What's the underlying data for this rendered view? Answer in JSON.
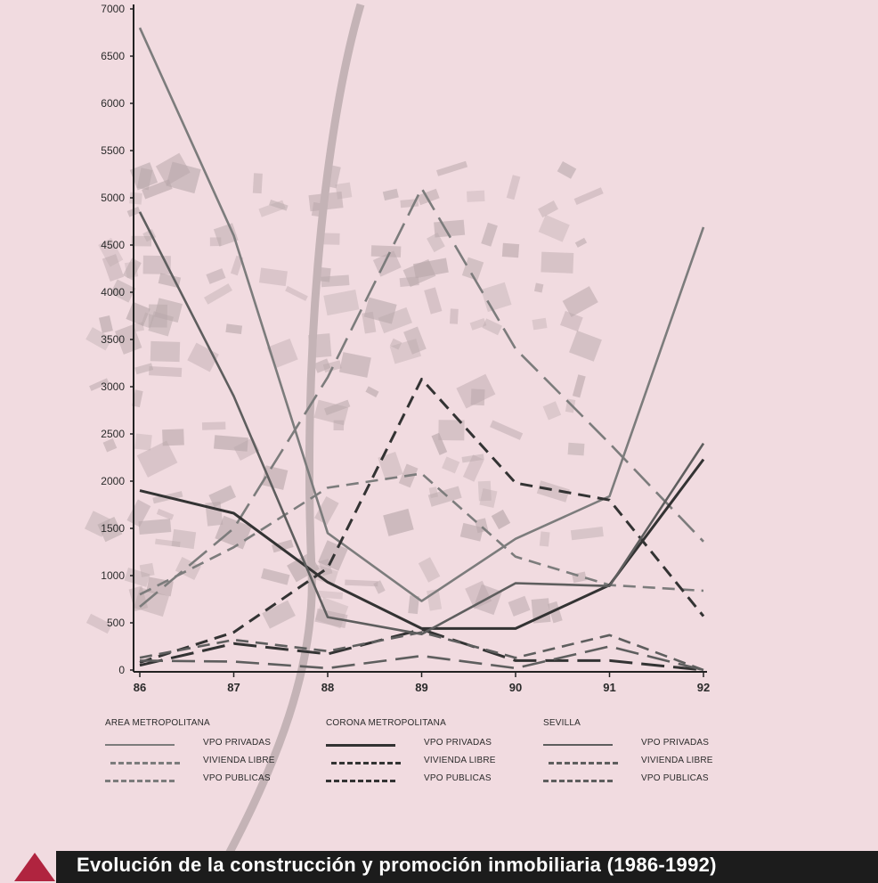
{
  "caption": "Evolución de la construcción y promoción inmobiliaria (1986-1992)",
  "legend": {
    "groups": [
      {
        "title": "AREA METROPOLITANA",
        "items": [
          "VPO PRIVADAS",
          "VIVIENDA LIBRE",
          "VPO PUBLICAS"
        ]
      },
      {
        "title": "CORONA METROPOLITANA",
        "items": [
          "VPO PRIVADAS",
          "VIVIENDA LIBRE",
          "VPO PUBLICAS"
        ]
      },
      {
        "title": "SEVILLA",
        "items": [
          "VPO PRIVADAS",
          "VIVIENDA LIBRE",
          "VPO PUBLICAS"
        ]
      }
    ]
  },
  "chart_data": {
    "type": "line",
    "x": [
      "86",
      "87",
      "88",
      "89",
      "90",
      "91",
      "92"
    ],
    "yticks": [
      "0",
      "500",
      "1000",
      "1500",
      "2000",
      "2500",
      "3000",
      "3500",
      "4000",
      "4500",
      "5000",
      "5500",
      "6000",
      "6500",
      "7000"
    ],
    "ylim": [
      0,
      7000
    ],
    "grid": false,
    "legend_position": "bottom",
    "colors": {
      "grey": "#7c7c7c",
      "dark": "#333333",
      "mid": "#5e5e5e",
      "text": "#2a2a2a",
      "axis": "#222222"
    },
    "series": [
      {
        "group": "AREA METROPOLITANA",
        "name": "VPO PRIVADAS",
        "style": "solid",
        "tone": "grey",
        "values": [
          6800,
          4600,
          1450,
          730,
          1390,
          1840,
          4690
        ]
      },
      {
        "group": "AREA METROPOLITANA",
        "name": "VIVIENDA LIBRE",
        "style": "dashed",
        "tone": "grey",
        "values": [
          800,
          1300,
          1930,
          2080,
          1200,
          900,
          840
        ]
      },
      {
        "group": "AREA METROPOLITANA",
        "name": "VPO PUBLICAS",
        "style": "longdash",
        "tone": "grey",
        "values": [
          670,
          1500,
          3100,
          5100,
          3400,
          2400,
          1360
        ]
      },
      {
        "group": "CORONA METROPOLITANA",
        "name": "VPO PRIVADAS",
        "style": "solid",
        "tone": "dark",
        "values": [
          1900,
          1660,
          930,
          440,
          440,
          900,
          2230
        ]
      },
      {
        "group": "CORONA METROPOLITANA",
        "name": "VIVIENDA LIBRE",
        "style": "dashed",
        "tone": "dark",
        "values": [
          80,
          400,
          1080,
          3080,
          1980,
          1800,
          570
        ]
      },
      {
        "group": "CORONA METROPOLITANA",
        "name": "VPO PUBLICAS",
        "style": "longdash",
        "tone": "dark",
        "values": [
          50,
          280,
          170,
          430,
          100,
          100,
          0
        ]
      },
      {
        "group": "SEVILLA",
        "name": "VPO PRIVADAS",
        "style": "solid",
        "tone": "mid",
        "values": [
          4850,
          2900,
          560,
          380,
          920,
          890,
          2400
        ]
      },
      {
        "group": "SEVILLA",
        "name": "VIVIENDA LIBRE",
        "style": "dashed",
        "tone": "mid",
        "values": [
          130,
          320,
          200,
          400,
          130,
          370,
          0
        ]
      },
      {
        "group": "SEVILLA",
        "name": "VPO PUBLICAS",
        "style": "longdash",
        "tone": "mid",
        "values": [
          100,
          90,
          20,
          150,
          20,
          250,
          0
        ]
      }
    ]
  }
}
